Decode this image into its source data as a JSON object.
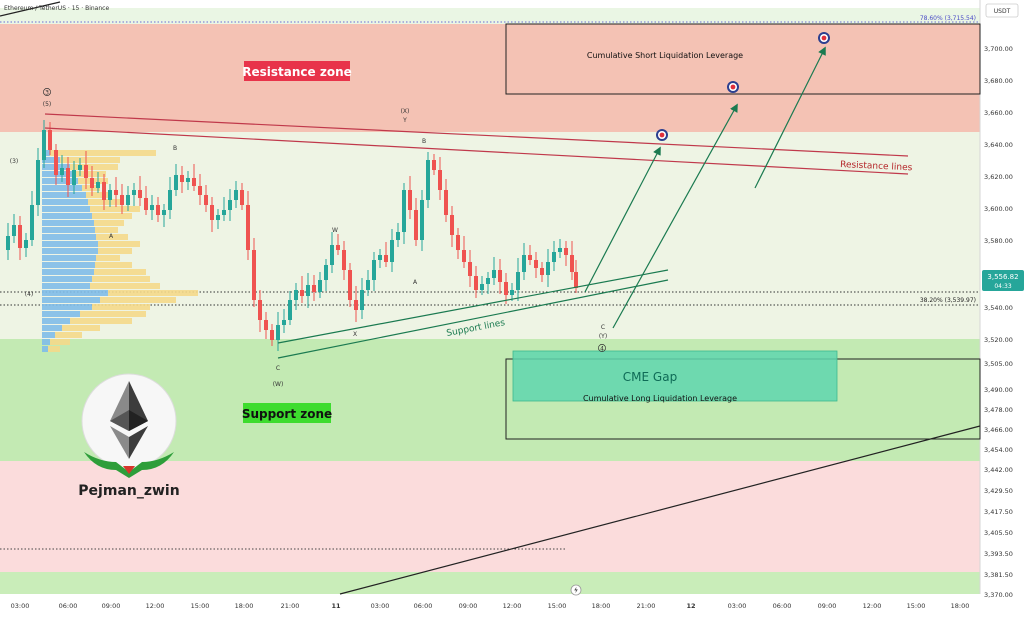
{
  "header": {
    "title": "Ethereum / TetherUS · 15 · Binance",
    "currency_button": "USDT"
  },
  "price_axis": {
    "labels": [
      "3,715.54",
      "3,700.00",
      "3,680.00",
      "3,660.00",
      "3,640.00",
      "3,620.00",
      "3,600.00",
      "3,580.00",
      "3,560.00",
      "3,540.00",
      "3,520.00",
      "3,505.00",
      "3,490.00",
      "3,478.00",
      "3,466.00",
      "3,454.00",
      "3,442.00",
      "3,429.50",
      "3,417.50",
      "3,405.50",
      "3,393.50",
      "3,381.50",
      "3,370.00"
    ],
    "current_price": "3,556.82",
    "countdown": "04:33",
    "current_color": "#26a69a"
  },
  "time_axis": {
    "labels": [
      "03:00",
      "06:00",
      "09:00",
      "12:00",
      "15:00",
      "18:00",
      "21:00",
      "11",
      "03:00",
      "06:00",
      "09:00",
      "12:00",
      "15:00",
      "18:00",
      "21:00",
      "12",
      "03:00",
      "06:00",
      "09:00",
      "12:00",
      "15:00",
      "18:00"
    ]
  },
  "zones": {
    "resistance": {
      "label": "Resistance zone",
      "color": "#f4b8a8",
      "badge_color": "#e8334a"
    },
    "support": {
      "label": "Support zone",
      "color": "#b7e6a6",
      "badge_color": "#2ecc2e"
    },
    "cme_gap": {
      "label": "CME Gap",
      "color": "#4fd1a5"
    },
    "short_liq": {
      "label": "Cumulative Short Liquidation Leverage"
    },
    "long_liq": {
      "label": "Cumulative Long Liquidation Leverage"
    }
  },
  "annotations": {
    "resistance_lines": "Resistance lines",
    "support_lines": "Support lines",
    "fib_top": "78.60% (3,715.54)",
    "fib_mid": "38.20% (3,539.97)",
    "wave_labels": {
      "w3_circle": "3",
      "w5": "(5)",
      "w3": "(3)",
      "w4": "(4)",
      "b1": "B",
      "a1": "A",
      "c1": "C",
      "w_paren": "(W)",
      "w": "W",
      "x": "X",
      "y": "Y",
      "x_paren": "(X)",
      "y_small": "Y",
      "b2": "B",
      "a2": "A",
      "c2": "C",
      "y_paren": "(Y)",
      "w4_circle": "4"
    }
  },
  "branding": {
    "author": "Pejman_zwin"
  },
  "chart_data": {
    "type": "candlestick",
    "symbol": "ETHUSDT",
    "timeframe": "15",
    "exchange": "Binance",
    "ylim": [
      3370,
      3720
    ],
    "last_price": 3556.82,
    "resistance_zone": [
      3650,
      3720
    ],
    "support_zone": [
      3450,
      3518
    ],
    "cme_gap": [
      3485,
      3512
    ],
    "fib_levels": [
      {
        "ratio": 0.786,
        "price": 3715.54
      },
      {
        "ratio": 0.382,
        "price": 3539.97
      }
    ],
    "targets_marked": 3
  }
}
